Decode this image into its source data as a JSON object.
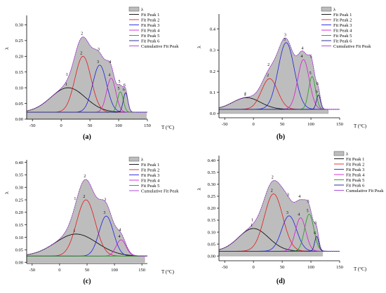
{
  "chart_data": [
    {
      "panel_label": "(a)",
      "type": "area",
      "ylabel": "λ",
      "xlabel": "T (°C)",
      "xlim": [
        -60,
        150
      ],
      "ylim": [
        0,
        0.33
      ],
      "x_ticks": [
        -50,
        0,
        50,
        100,
        150
      ],
      "y_ticks": [
        0.0,
        0.05,
        0.1,
        0.15,
        0.2,
        0.25,
        0.3
      ],
      "y_tick_labels": [
        "0.00",
        "0.05",
        "0.10",
        "0.15",
        "0.20",
        "0.25",
        "0.30"
      ],
      "baseline": 0.022,
      "legend_position": "top-right",
      "legend_fill_label": "λ",
      "series": [
        {
          "name": "Fit Peak 1",
          "color": "#000000",
          "center": 12,
          "height": 0.078,
          "width": 30
        },
        {
          "name": "Fit Peak 2",
          "color": "#e41a1c",
          "center": 38,
          "height": 0.178,
          "width": 14
        },
        {
          "name": "Fit Peak 3",
          "color": "#1f1fdd",
          "center": 67,
          "height": 0.15,
          "width": 12
        },
        {
          "name": "Fit Peak 4",
          "color": "#d01fd0",
          "center": 87,
          "height": 0.108,
          "width": 8
        },
        {
          "name": "Fit Peak 5",
          "color": "#1c9a1c",
          "center": 103,
          "height": 0.065,
          "width": 5
        },
        {
          "name": "Fit Peak 6",
          "color": "#1a1a8c",
          "center": 112,
          "height": 0.062,
          "width": 4
        }
      ],
      "cumulative": {
        "name": "Cumulative Fit Peak",
        "color": "#a23ad6"
      },
      "peak_numbers": [
        "1",
        "2",
        "3",
        "4",
        "5",
        "6"
      ],
      "fill_extent": [
        -60,
        148
      ]
    },
    {
      "panel_label": "(b)",
      "type": "area",
      "ylabel": "λ",
      "xlabel": "T (°C)",
      "xlim": [
        -60,
        150
      ],
      "ylim": [
        -0.02,
        0.47
      ],
      "x_ticks": [
        -50,
        0,
        50,
        100,
        150
      ],
      "y_ticks": [
        0.0,
        0.1,
        0.2,
        0.3,
        0.4
      ],
      "y_tick_labels": [
        "0.0",
        "0.1",
        "0.2",
        "0.3",
        "0.4"
      ],
      "baseline": 0.02,
      "legend_position": "top-right",
      "legend_fill_label": "λ",
      "series": [
        {
          "name": "Fit Peak 1",
          "color": "#000000",
          "center": -12,
          "height": 0.055,
          "width": 24
        },
        {
          "name": "Fit Peak 2",
          "color": "#e41a1c",
          "center": 28,
          "height": 0.145,
          "width": 14
        },
        {
          "name": "Fit Peak 3",
          "color": "#1f1fdd",
          "center": 57,
          "height": 0.315,
          "width": 14
        },
        {
          "name": "Fit Peak 4",
          "color": "#d01fd0",
          "center": 87,
          "height": 0.235,
          "width": 10
        },
        {
          "name": "Fit Peak 5",
          "color": "#1c9a1c",
          "center": 102,
          "height": 0.155,
          "width": 6
        },
        {
          "name": "Fit Peak 6",
          "color": "#1a1a8c",
          "center": 113,
          "height": 0.068,
          "width": 3.5
        }
      ],
      "cumulative": {
        "name": "Cumulative Fit Peak",
        "color": "#a23ad6"
      },
      "peak_numbers": [
        "1",
        "2",
        "3",
        "4",
        "5",
        "6"
      ],
      "fill_extent": [
        -60,
        130
      ]
    },
    {
      "panel_label": "(c)",
      "type": "area",
      "ylabel": "λ",
      "xlabel": "T (°C)",
      "xlim": [
        -60,
        160
      ],
      "ylim": [
        -0.005,
        0.41
      ],
      "x_ticks": [
        -50,
        0,
        50,
        100,
        150
      ],
      "y_ticks": [
        0.0,
        0.05,
        0.1,
        0.15,
        0.2,
        0.25,
        0.3,
        0.35,
        0.4
      ],
      "y_tick_labels": [
        "0.00",
        "0.05",
        "0.10",
        "0.15",
        "0.20",
        "0.25",
        "0.30",
        "0.35",
        "0.40"
      ],
      "baseline": 0.025,
      "legend_position": "top-right",
      "legend_fill_label": "λ",
      "series": [
        {
          "name": "Fit Peak 1",
          "color": "#000000",
          "center": 30,
          "height": 0.088,
          "width": 38
        },
        {
          "name": "Fit Peak 2",
          "color": "#e41a1c",
          "center": 48,
          "height": 0.225,
          "width": 17
        },
        {
          "name": "Fit Peak 3",
          "color": "#1f1fdd",
          "center": 85,
          "height": 0.16,
          "width": 13
        },
        {
          "name": "Fit Peak 4",
          "color": "#d01fd0",
          "center": 112,
          "height": 0.065,
          "width": 9
        },
        {
          "name": "Fit Peak 5",
          "color": "#1c9a1c",
          "center": 0,
          "height": 0.0,
          "width": 10
        }
      ],
      "cumulative": {
        "name": "Cumulative Fit Peak",
        "color": "#a23ad6"
      },
      "peak_numbers": [
        "1",
        "2",
        "3",
        "4",
        "5"
      ],
      "fill_extent": [
        -60,
        155
      ]
    },
    {
      "panel_label": "(d)",
      "type": "area",
      "ylabel": "λ",
      "xlabel": "T (°C)",
      "xlim": [
        -60,
        150
      ],
      "ylim": [
        -0.02,
        0.42
      ],
      "x_ticks": [
        -50,
        0,
        50,
        100,
        150
      ],
      "y_ticks": [
        0.0,
        0.05,
        0.1,
        0.15,
        0.2,
        0.25,
        0.3,
        0.35,
        0.4
      ],
      "y_tick_labels": [
        "0.00",
        "0.05",
        "0.10",
        "0.15",
        "0.20",
        "0.25",
        "0.30",
        "0.35",
        "0.40"
      ],
      "baseline": 0.02,
      "legend_position": "top-right",
      "legend_fill_label": "λ",
      "series": [
        {
          "name": "Fit Peak 1",
          "color": "#000000",
          "center": 0,
          "height": 0.095,
          "width": 26
        },
        {
          "name": "Fit Peak 2",
          "color": "#e41a1c",
          "center": 35,
          "height": 0.24,
          "width": 16
        },
        {
          "name": "Fit Peak 3",
          "color": "#1f1fdd",
          "center": 62,
          "height": 0.148,
          "width": 13
        },
        {
          "name": "Fit Peak 4",
          "color": "#d01fd0",
          "center": 82,
          "height": 0.14,
          "width": 9
        },
        {
          "name": "Fit Peak 5",
          "color": "#1c9a1c",
          "center": 97,
          "height": 0.155,
          "width": 8
        },
        {
          "name": "Fit Peak 6",
          "color": "#1a1a8c",
          "center": 110,
          "height": 0.062,
          "width": 3.5
        }
      ],
      "cumulative": {
        "name": "Cumulative Fit Peak",
        "color": "#a23ad6"
      },
      "peak_numbers": [
        "1",
        "2",
        "3",
        "4",
        "5",
        "6"
      ],
      "fill_extent": [
        -60,
        120
      ]
    }
  ]
}
